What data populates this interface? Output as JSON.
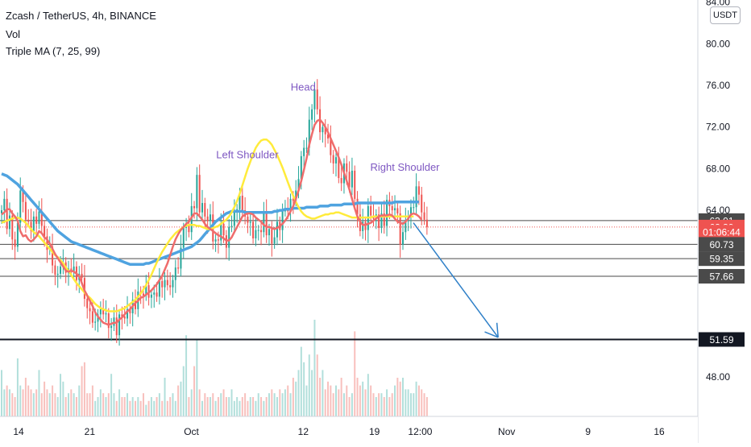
{
  "header": {
    "title": "Zcash / TetherUS, 4h, BINANCE",
    "vol_label": "Vol",
    "ma_label": "Triple MA (7, 25, 99)"
  },
  "currency": "USDT",
  "chart_data": {
    "type": "candlestick",
    "symbol": "Zcash / TetherUS",
    "interval": "4h",
    "exchange": "BINANCE",
    "ylim": [
      44.2,
      84.2
    ],
    "y_ticks": [
      "84.00",
      "80.00",
      "76.00",
      "72.00",
      "68.00",
      "64.00",
      "48.00"
    ],
    "x_ticks": [
      {
        "label": "14",
        "date": "2020-09-14"
      },
      {
        "label": "21",
        "date": "2020-09-21"
      },
      {
        "label": "Oct",
        "date": "2020-10-01"
      },
      {
        "label": "12",
        "date": "2020-10-12"
      },
      {
        "label": "19",
        "date": "2020-10-19"
      },
      {
        "label": "12:00",
        "date": "2020-10-23 12:00"
      },
      {
        "label": "Nov",
        "date": "2020-11-01"
      },
      {
        "label": "9",
        "date": "2020-11-09"
      },
      {
        "label": "16",
        "date": "2020-11-16"
      }
    ],
    "price_levels": [
      {
        "label": "63.01",
        "value": 63.01,
        "style": "line",
        "bg": "#4a4a4a"
      },
      {
        "label": "62.39",
        "value": 62.39,
        "style": "dotted",
        "bg": "#ef5350"
      },
      {
        "label": "01:06:44",
        "value": 61.9,
        "style": "countdown",
        "bg": "#ef5350"
      },
      {
        "label": "60.73",
        "value": 60.73,
        "style": "line",
        "bg": "#4a4a4a"
      },
      {
        "label": "59.35",
        "value": 59.35,
        "style": "line",
        "bg": "#4a4a4a"
      },
      {
        "label": "57.66",
        "value": 57.66,
        "style": "line",
        "bg": "#4a4a4a"
      },
      {
        "label": "51.59",
        "value": 51.59,
        "style": "thick",
        "bg": "#131722"
      }
    ],
    "closes": [
      64.0,
      65.1,
      62.2,
      63.5,
      61.2,
      60.5,
      62.8,
      65.9,
      64.8,
      63.1,
      62.9,
      62.0,
      63.4,
      62.7,
      63.9,
      62.5,
      61.5,
      60.2,
      60.5,
      58.7,
      57.8,
      57.9,
      58.6,
      59.0,
      58.0,
      58.4,
      58.1,
      58.6,
      57.3,
      57.9,
      57.5,
      55.5,
      54.6,
      54.3,
      53.2,
      53.3,
      54.0,
      54.5,
      54.0,
      54.1,
      52.7,
      52.9,
      53.7,
      52.0,
      54.0,
      53.8,
      53.6,
      54.5,
      54.1,
      55.4,
      54.5,
      56.2,
      56.0,
      55.8,
      56.8,
      55.6,
      55.9,
      56.1,
      55.7,
      57.2,
      56.6,
      57.3,
      56.8,
      56.6,
      57.3,
      58.5,
      58.4,
      60.4,
      62.3,
      62.5,
      61.9,
      64.4,
      64.2,
      67.4,
      63.8,
      64.7,
      63.4,
      63.0,
      63.6,
      61.0,
      61.2,
      61.1,
      62.7,
      61.6,
      60.4,
      62.4,
      62.5,
      63.8,
      64.1,
      65.4,
      64.0,
      63.4,
      62.8,
      62.9,
      61.3,
      62.1,
      62.1,
      61.9,
      63.8,
      61.6,
      62.2,
      60.8,
      61.4,
      62.9,
      62.1,
      63.9,
      64.0,
      63.9,
      65.1,
      64.9,
      65.9,
      67.0,
      69.2,
      70.0,
      70.0,
      72.7,
      73.7,
      75.6,
      73.7,
      71.5,
      72.0,
      71.3,
      70.9,
      69.3,
      68.5,
      69.1,
      67.1,
      66.6,
      68.5,
      67.7,
      66.2,
      67.8,
      65.1,
      63.6,
      62.0,
      62.9,
      62.1,
      64.4,
      63.5,
      63.2,
      63.6,
      62.3,
      63.7,
      62.5,
      65.0,
      64.4,
      64.0,
      64.2,
      63.7,
      60.7,
      61.9,
      63.0,
      63.5,
      64.3,
      64.3,
      66.3,
      65.5,
      63.8,
      63.1,
      62.4
    ],
    "volumes": [
      0.12,
      0.07,
      0.08,
      0.07,
      0.06,
      0.05,
      0.15,
      0.08,
      0.07,
      0.1,
      0.08,
      0.07,
      0.06,
      0.07,
      0.12,
      0.06,
      0.09,
      0.07,
      0.06,
      0.08,
      0.06,
      0.05,
      0.11,
      0.09,
      0.05,
      0.06,
      0.07,
      0.06,
      0.05,
      0.08,
      0.13,
      0.14,
      0.06,
      0.06,
      0.08,
      0.04,
      0.05,
      0.07,
      0.06,
      0.05,
      0.06,
      0.11,
      0.06,
      0.04,
      0.07,
      0.05,
      0.05,
      0.06,
      0.04,
      0.05,
      0.04,
      0.05,
      0.04,
      0.06,
      0.03,
      0.04,
      0.05,
      0.04,
      0.05,
      0.06,
      0.04,
      0.1,
      0.04,
      0.05,
      0.06,
      0.04,
      0.08,
      0.09,
      0.13,
      0.21,
      0.05,
      0.07,
      0.13,
      0.2,
      0.07,
      0.04,
      0.06,
      0.05,
      0.05,
      0.06,
      0.04,
      0.05,
      0.06,
      0.07,
      0.05,
      0.05,
      0.07,
      0.04,
      0.05,
      0.04,
      0.05,
      0.06,
      0.04,
      0.05,
      0.05,
      0.04,
      0.06,
      0.05,
      0.04,
      0.05,
      0.06,
      0.07,
      0.06,
      0.05,
      0.07,
      0.06,
      0.07,
      0.08,
      0.06,
      0.1,
      0.09,
      0.12,
      0.18,
      0.14,
      0.08,
      0.16,
      0.12,
      0.25,
      0.16,
      0.1,
      0.12,
      0.07,
      0.09,
      0.08,
      0.06,
      0.08,
      0.07,
      0.1,
      0.06,
      0.08,
      0.05,
      0.06,
      0.22,
      0.1,
      0.08,
      0.09,
      0.07,
      0.11,
      0.08,
      0.06,
      0.05,
      0.06,
      0.06,
      0.05,
      0.07,
      0.05,
      0.06,
      0.08,
      0.1,
      0.09,
      0.1,
      0.07,
      0.07,
      0.06,
      0.06,
      0.09,
      0.08,
      0.07,
      0.06,
      0.05
    ],
    "ma_fast": [
      63.6,
      63.8,
      64.1,
      64.1,
      63.7,
      63.4,
      63.0,
      62.0,
      61.5,
      61.6,
      61.2,
      61.0,
      61.2,
      61.5,
      62.0,
      61.8,
      61.4,
      61.2,
      60.8,
      60.3,
      59.8,
      59.4,
      59.0,
      58.6,
      58.2,
      58.1,
      58.2,
      58.1,
      57.9,
      57.7,
      57.0,
      56.3,
      55.8,
      55.3,
      54.8,
      54.2,
      53.8,
      53.5,
      53.2,
      53.1,
      53.0,
      53.1,
      53.2,
      53.2,
      53.5,
      53.7,
      54.0,
      54.3,
      54.5,
      54.8,
      55.1,
      55.3,
      55.6,
      55.7,
      55.9,
      56.1,
      56.3,
      56.6,
      56.9,
      57.3,
      57.7,
      58.3,
      58.9,
      59.7,
      60.5,
      61.2,
      61.7,
      62.1,
      62.4,
      62.7,
      62.9,
      63.3,
      63.7,
      63.7,
      63.4,
      63.1,
      62.7,
      62.4,
      62.2,
      62.0,
      61.8,
      61.6,
      61.5,
      61.3,
      61.1,
      61.1,
      61.4,
      61.9,
      62.4,
      62.9,
      63.4,
      63.6,
      63.7,
      63.7,
      63.6,
      63.3,
      63.1,
      62.9,
      62.6,
      62.4,
      62.4,
      62.3,
      62.2,
      62.3,
      62.5,
      62.7,
      63.0,
      63.4,
      63.9,
      64.4,
      65.1,
      65.9,
      66.8,
      67.9,
      69.0,
      70.3,
      71.3,
      72.2,
      72.6,
      72.7,
      72.4,
      72.0,
      71.5,
      70.9,
      70.3,
      69.7,
      69.1,
      68.4,
      67.6,
      66.8,
      66.0,
      65.1,
      64.2,
      63.4,
      62.9,
      62.6,
      62.6,
      62.7,
      62.8,
      63.0,
      63.2,
      63.4,
      63.5,
      63.5,
      63.5,
      63.6,
      63.5,
      63.2,
      62.9,
      62.8,
      62.7,
      62.9,
      63.2,
      63.6,
      63.7,
      63.6,
      63.4,
      63.1
    ],
    "ma_mid": [
      62.8,
      62.9,
      63.0,
      63.1,
      63.2,
      63.3,
      63.3,
      63.2,
      63.0,
      62.8,
      62.5,
      62.2,
      61.9,
      61.7,
      61.5,
      61.2,
      60.9,
      60.6,
      60.3,
      60.0,
      59.7,
      59.5,
      59.2,
      58.9,
      58.5,
      58.2,
      57.8,
      57.4,
      57.0,
      56.7,
      56.4,
      56.1,
      55.8,
      55.6,
      55.3,
      55.0,
      54.8,
      54.6,
      54.5,
      54.4,
      54.3,
      54.3,
      54.3,
      54.3,
      54.4,
      54.5,
      54.6,
      54.8,
      55.0,
      55.2,
      55.4,
      55.7,
      56.0,
      56.4,
      56.8,
      57.3,
      57.8,
      58.4,
      59.0,
      59.5,
      60.0,
      60.4,
      60.8,
      61.2,
      61.5,
      61.8,
      62.0,
      62.2,
      62.4,
      62.5,
      62.6,
      62.6,
      62.6,
      62.5,
      62.5,
      62.4,
      62.3,
      62.2,
      62.2,
      62.3,
      62.4,
      62.5,
      62.7,
      62.9,
      63.1,
      63.4,
      63.8,
      64.3,
      64.9,
      65.6,
      66.4,
      67.2,
      68.0,
      68.7,
      69.4,
      70.0,
      70.4,
      70.7,
      70.8,
      70.8,
      70.6,
      70.3,
      69.8,
      69.3,
      68.7,
      68.1,
      67.4,
      66.7,
      66.0,
      65.4,
      64.8,
      64.3,
      63.9,
      63.6,
      63.4,
      63.3,
      63.2,
      63.2,
      63.3,
      63.4,
      63.5,
      63.6,
      63.6,
      63.7,
      63.7,
      63.8,
      63.8,
      63.7,
      63.6,
      63.5,
      63.4,
      63.3,
      63.3,
      63.3,
      63.3,
      63.3,
      63.3,
      63.3,
      63.3,
      63.4,
      63.4,
      63.4,
      63.4,
      63.4,
      63.4,
      63.4,
      63.4,
      63.4,
      63.4,
      63.4,
      63.4,
      63.4,
      63.4,
      63.4,
      63.4
    ],
    "ma_slow": [
      67.5,
      67.4,
      67.3,
      67.1,
      66.9,
      66.7,
      66.5,
      66.2,
      65.9,
      65.6,
      65.3,
      65.0,
      64.7,
      64.4,
      64.1,
      63.8,
      63.5,
      63.2,
      62.9,
      62.6,
      62.3,
      62.0,
      61.8,
      61.6,
      61.4,
      61.2,
      61.0,
      60.9,
      60.8,
      60.7,
      60.6,
      60.5,
      60.4,
      60.3,
      60.2,
      60.1,
      60.0,
      59.9,
      59.8,
      59.7,
      59.6,
      59.5,
      59.4,
      59.3,
      59.2,
      59.1,
      59.0,
      58.9,
      58.8,
      58.8,
      58.8,
      58.8,
      58.8,
      58.8,
      58.9,
      58.9,
      59.0,
      59.1,
      59.2,
      59.3,
      59.4,
      59.5,
      59.6,
      59.7,
      59.8,
      59.9,
      60.0,
      60.1,
      60.2,
      60.3,
      60.4,
      60.5,
      60.7,
      60.9,
      61.1,
      61.4,
      61.7,
      62.0,
      62.3,
      62.6,
      62.9,
      63.1,
      63.3,
      63.5,
      63.7,
      63.8,
      63.9,
      63.9,
      63.9,
      63.9,
      63.9,
      63.8,
      63.8,
      63.8,
      63.8,
      63.8,
      63.8,
      63.8,
      63.8,
      63.8,
      63.8,
      63.8,
      63.9,
      63.9,
      64.0,
      64.0,
      64.1,
      64.1,
      64.1,
      64.2,
      64.2,
      64.2,
      64.2,
      64.2,
      64.3,
      64.3,
      64.3,
      64.3,
      64.3,
      64.4,
      64.4,
      64.4,
      64.4,
      64.5,
      64.5,
      64.5,
      64.5,
      64.5,
      64.6,
      64.6,
      64.6,
      64.6,
      64.6,
      64.7,
      64.7,
      64.7,
      64.7,
      64.7,
      64.7,
      64.7,
      64.7,
      64.7,
      64.7,
      64.7,
      64.7,
      64.7,
      64.7,
      64.8,
      64.8,
      64.8,
      64.8,
      64.8,
      64.8,
      64.8,
      64.8,
      64.8,
      64.8
    ],
    "annotations": [
      {
        "text": "Left Shoulder",
        "date": "2020-10-06 12:00",
        "price": 69.0
      },
      {
        "text": "Head",
        "date": "2020-10-12",
        "price": 75.5
      },
      {
        "text": "Right Shoulder",
        "date": "2020-10-22",
        "price": 67.8
      }
    ],
    "arrow": {
      "from": {
        "date": "2020-10-22 20:00",
        "price": 62.8
      },
      "to": {
        "date": "2020-10-31 04:00",
        "price": 51.8
      }
    },
    "colors": {
      "up": "#26a69a",
      "down": "#ef5350",
      "ma_fast": "#ef6c6c",
      "ma_mid": "#ffeb3b",
      "ma_slow": "#4fa3e0",
      "arrow": "#2f80c8",
      "annotation": "#7e57c2"
    }
  }
}
